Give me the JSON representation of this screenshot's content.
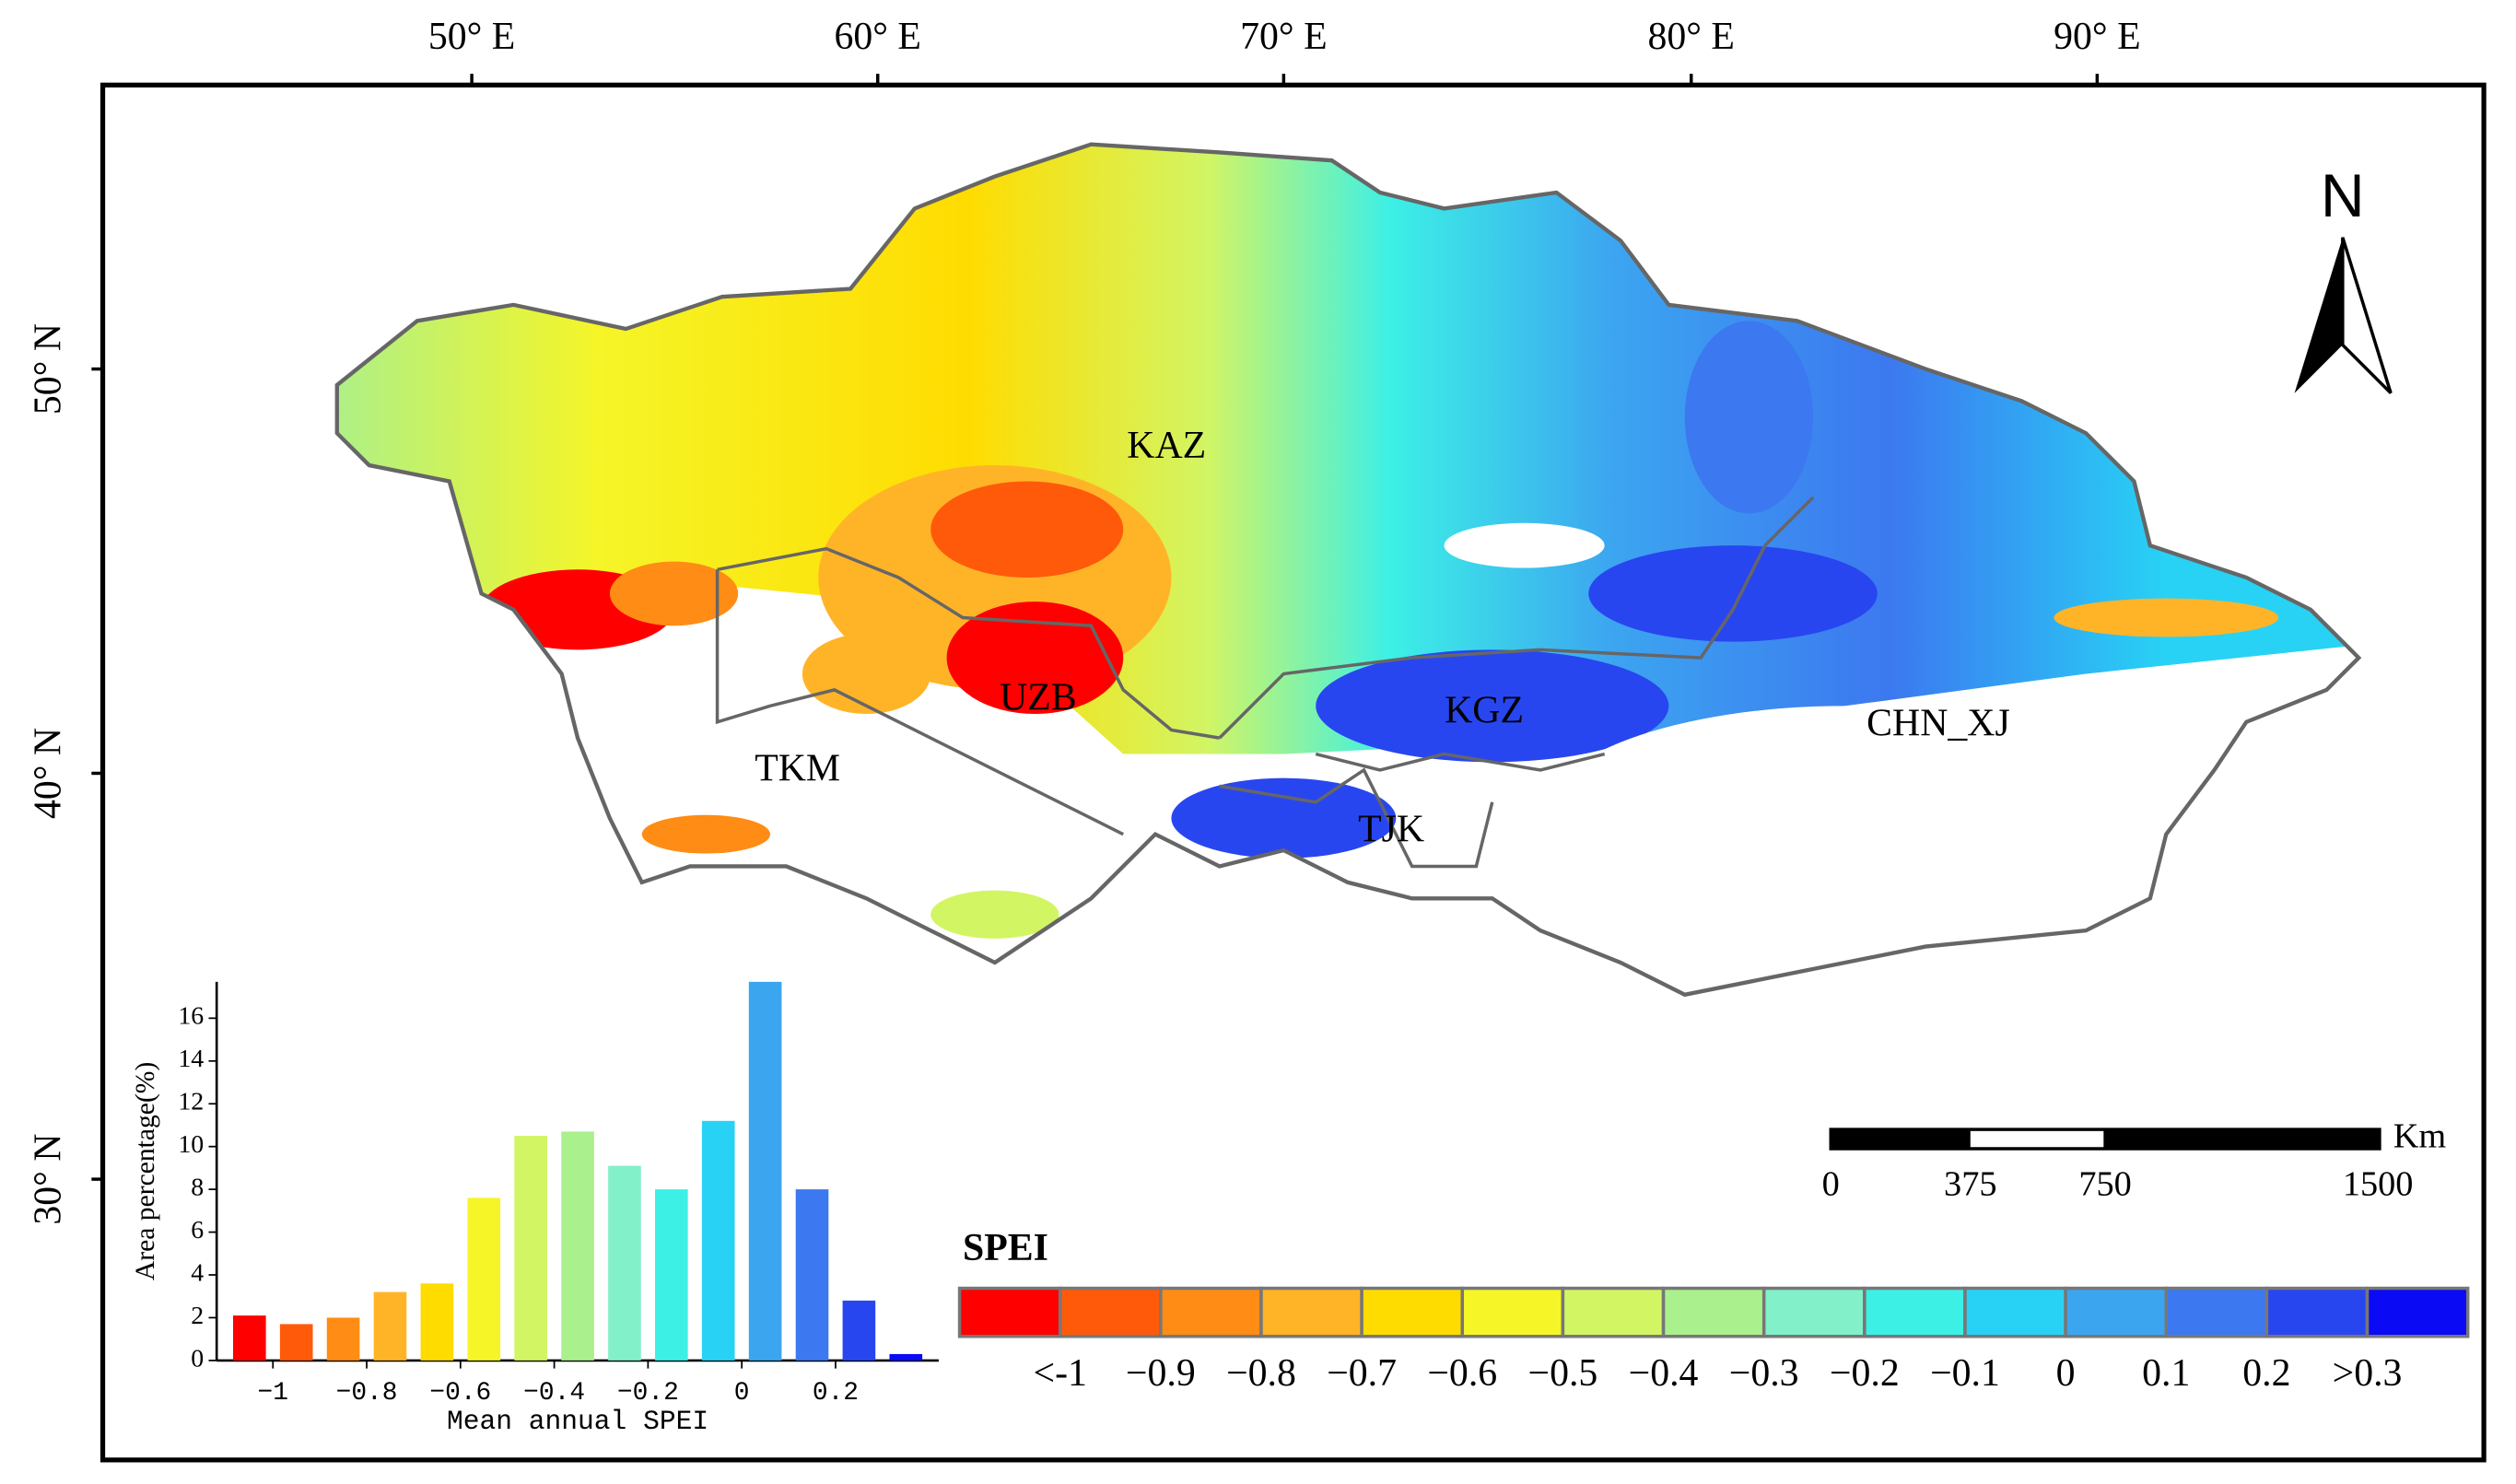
{
  "map": {
    "lon_labels": [
      "50° E",
      "60° E",
      "70° E",
      "80° E",
      "90° E"
    ],
    "lat_labels": [
      "50° N",
      "40° N",
      "30° N"
    ],
    "north": "N",
    "countries": [
      "KAZ",
      "UZB",
      "TKM",
      "KGZ",
      "TJK",
      "CHN_XJ"
    ],
    "scale_bar": {
      "unit": "Km",
      "labels": [
        "0",
        "375",
        "750",
        "1500"
      ]
    },
    "legend": {
      "title": "SPEI",
      "labels": [
        "<-1",
        "−0.9",
        "−0.8",
        "−0.7",
        "−0.6",
        "−0.5",
        "−0.4",
        "−0.3",
        "−0.2",
        "−0.1",
        "0",
        "0.1",
        "0.2",
        ">0.3"
      ],
      "colors": [
        "#ff0000",
        "#ff5a0a",
        "#ff8c14",
        "#ffb428",
        "#ffdc00",
        "#f5f528",
        "#d2f564",
        "#aaf08c",
        "#82f0c8",
        "#3cf0e6",
        "#28d2f5",
        "#3ca5f0",
        "#3c78f0",
        "#2846f0",
        "#0a0af5"
      ]
    }
  },
  "chart_data": {
    "type": "bar",
    "ylabel": "Area percentage(%)",
    "xlabel": "Mean annual SPEI",
    "x": [
      -1.05,
      -0.95,
      -0.85,
      -0.75,
      -0.65,
      -0.55,
      -0.45,
      -0.35,
      -0.25,
      -0.15,
      -0.05,
      0.05,
      0.15,
      0.25,
      0.35
    ],
    "values": [
      2.1,
      1.7,
      2.0,
      3.2,
      3.6,
      7.6,
      10.5,
      10.7,
      9.1,
      8.0,
      11.2,
      17.7,
      8.0,
      2.8,
      0.3
    ],
    "colors": [
      "#ff0000",
      "#ff5a0a",
      "#ff8c14",
      "#ffb428",
      "#ffdc00",
      "#f5f528",
      "#d2f564",
      "#aaf08c",
      "#82f0c8",
      "#3cf0e6",
      "#28d2f5",
      "#3ca5f0",
      "#3c78f0",
      "#2846f0",
      "#0a0af5"
    ],
    "xlim": [
      -1.12,
      0.42
    ],
    "xticks": [
      {
        "value": -1,
        "label": "−1"
      },
      {
        "value": -0.8,
        "label": "−0.8"
      },
      {
        "value": -0.6,
        "label": "−0.6"
      },
      {
        "value": -0.4,
        "label": "−0.4"
      },
      {
        "value": -0.2,
        "label": "−0.2"
      },
      0,
      0.2
    ],
    "ylim": [
      0,
      17.7
    ],
    "yticks": [
      0,
      2,
      4,
      6,
      8,
      10,
      12,
      14,
      16
    ]
  }
}
